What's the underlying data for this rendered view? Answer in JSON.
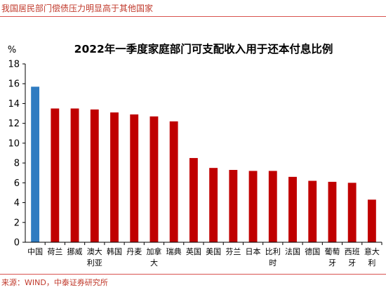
{
  "header": {
    "title": "我国居民部门偿债压力明显高于其他国家"
  },
  "footer": {
    "source": "来源：WIND，中泰证券研究所"
  },
  "chart_data": {
    "type": "bar",
    "title": "2022年一季度家庭部门可支配收入用于还本付息比例",
    "ylabel": "%",
    "xlabel": "",
    "ylim": [
      0,
      18
    ],
    "yticks": [
      0,
      2,
      4,
      6,
      8,
      10,
      12,
      14,
      16,
      18
    ],
    "grid": false,
    "legend": "none",
    "categories": [
      "中国",
      "荷兰",
      "挪威",
      "澳大利亚",
      "韩国",
      "丹麦",
      "加拿大",
      "瑞典",
      "英国",
      "美国",
      "芬兰",
      "日本",
      "比利时",
      "法国",
      "德国",
      "葡萄牙",
      "西班牙",
      "意大利"
    ],
    "category_lines": [
      [
        "中国"
      ],
      [
        "荷兰"
      ],
      [
        "挪威"
      ],
      [
        "澳大",
        "利亚"
      ],
      [
        "韩国"
      ],
      [
        "丹麦"
      ],
      [
        "加拿",
        "大"
      ],
      [
        "瑞典"
      ],
      [
        "英国"
      ],
      [
        "美国"
      ],
      [
        "芬兰"
      ],
      [
        "日本"
      ],
      [
        "比利",
        "时"
      ],
      [
        "法国"
      ],
      [
        "德国"
      ],
      [
        "葡萄",
        "牙"
      ],
      [
        "西班",
        "牙"
      ],
      [
        "意大",
        "利"
      ]
    ],
    "values": [
      15.7,
      13.5,
      13.5,
      13.4,
      13.1,
      12.9,
      12.7,
      12.2,
      8.5,
      7.5,
      7.3,
      7.2,
      7.2,
      6.6,
      6.2,
      6.1,
      6.0,
      4.3
    ],
    "colors": {
      "highlight": "#2f7cc1",
      "default": "#c00000"
    },
    "highlight_index": 0
  }
}
